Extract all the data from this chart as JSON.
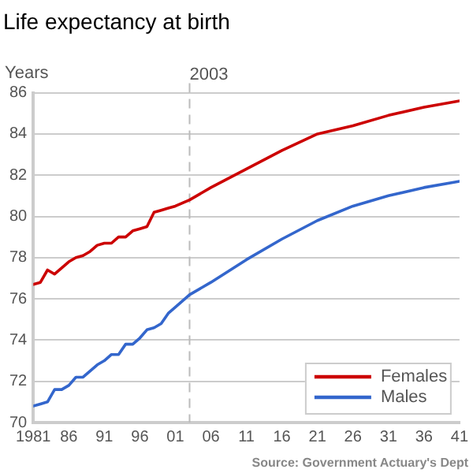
{
  "chart_data": {
    "type": "line",
    "title": "Life expectancy at birth",
    "ylabel": "Years",
    "annotations": [
      "Source: Government Actuary's Dept"
    ],
    "x": [
      1981,
      1982,
      1983,
      1984,
      1985,
      1986,
      1987,
      1988,
      1989,
      1990,
      1991,
      1992,
      1993,
      1994,
      1995,
      1996,
      1997,
      1998,
      1999,
      2000,
      2001,
      2003,
      2006,
      2011,
      2016,
      2021,
      2026,
      2031,
      2036,
      2041
    ],
    "series": [
      {
        "name": "Females",
        "color": "#cc0000",
        "values": [
          76.7,
          76.8,
          77.4,
          77.2,
          77.5,
          77.8,
          78.0,
          78.1,
          78.3,
          78.6,
          78.7,
          78.7,
          79.0,
          79.0,
          79.3,
          79.4,
          79.5,
          80.2,
          80.3,
          80.4,
          80.5,
          80.8,
          81.4,
          82.3,
          83.2,
          84.0,
          84.4,
          84.9,
          85.3,
          85.6
        ]
      },
      {
        "name": "Males",
        "color": "#3366cc",
        "values": [
          70.8,
          70.9,
          71.0,
          71.6,
          71.6,
          71.8,
          72.2,
          72.2,
          72.5,
          72.8,
          73.0,
          73.3,
          73.3,
          73.8,
          73.8,
          74.1,
          74.5,
          74.6,
          74.8,
          75.3,
          75.6,
          76.2,
          76.8,
          77.9,
          78.9,
          79.8,
          80.5,
          81.0,
          81.4,
          81.7
        ]
      }
    ],
    "xlim": [
      1981,
      2041
    ],
    "xticks": [
      1981,
      {
        "value": 1986,
        "label": "86"
      },
      {
        "value": 1991,
        "label": "91"
      },
      {
        "value": 1996,
        "label": "96"
      },
      {
        "value": 2001,
        "label": "01"
      },
      {
        "value": 2006,
        "label": "06"
      },
      {
        "value": 2011,
        "label": "11"
      },
      {
        "value": 2016,
        "label": "16"
      },
      {
        "value": 2021,
        "label": "21"
      },
      {
        "value": 2026,
        "label": "26"
      },
      {
        "value": 2031,
        "label": "31"
      },
      {
        "value": 2036,
        "label": "36"
      },
      {
        "value": 2041,
        "label": "41"
      }
    ],
    "ylim": [
      70,
      86
    ],
    "yticks": [
      70,
      72,
      74,
      76,
      78,
      80,
      82,
      84,
      86
    ],
    "ref_lines": [
      {
        "axis": "x",
        "value": 2003,
        "label": "2003",
        "line_style": "dashed",
        "color": "#bbbbbb"
      }
    ],
    "grid": "y",
    "legend": "bottom right",
    "marker": "none",
    "line_style": "solid"
  }
}
